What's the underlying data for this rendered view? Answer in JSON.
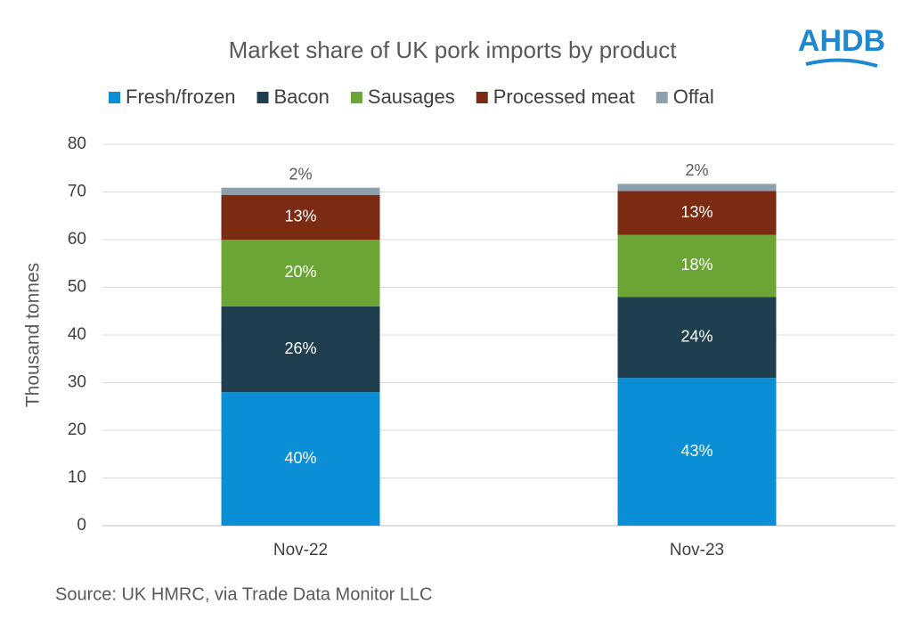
{
  "chart_data": {
    "type": "stacked-bar",
    "title": "Market share of UK pork imports by product",
    "logo": "AHDB",
    "y_label": "Thousand tonnes",
    "source": "Source: UK HMRC, via Trade Data Monitor LLC",
    "categories": [
      "Nov-22",
      "Nov-23"
    ],
    "series": [
      {
        "name": "Fresh/frozen",
        "color": "#0a8fd6",
        "values": [
          28,
          31
        ],
        "share_labels": [
          "40%",
          "43%"
        ]
      },
      {
        "name": "Bacon",
        "color": "#1f3f4f",
        "values": [
          18,
          17
        ],
        "share_labels": [
          "26%",
          "24%"
        ]
      },
      {
        "name": "Sausages",
        "color": "#6aa535",
        "values": [
          14,
          13
        ],
        "share_labels": [
          "20%",
          "18%"
        ]
      },
      {
        "name": "Processed meat",
        "color": "#7b2b12",
        "values": [
          9.4,
          9.2
        ],
        "share_labels": [
          "13%",
          "13%"
        ]
      },
      {
        "name": "Offal",
        "color": "#8ca0ad",
        "values": [
          1.5,
          1.5
        ],
        "share_labels": [
          "2%",
          "2%"
        ]
      }
    ],
    "ylim": [
      0,
      80
    ],
    "yticks": [
      0,
      10,
      20,
      30,
      40,
      50,
      60,
      70,
      80
    ],
    "grid": true,
    "legend": "top"
  }
}
